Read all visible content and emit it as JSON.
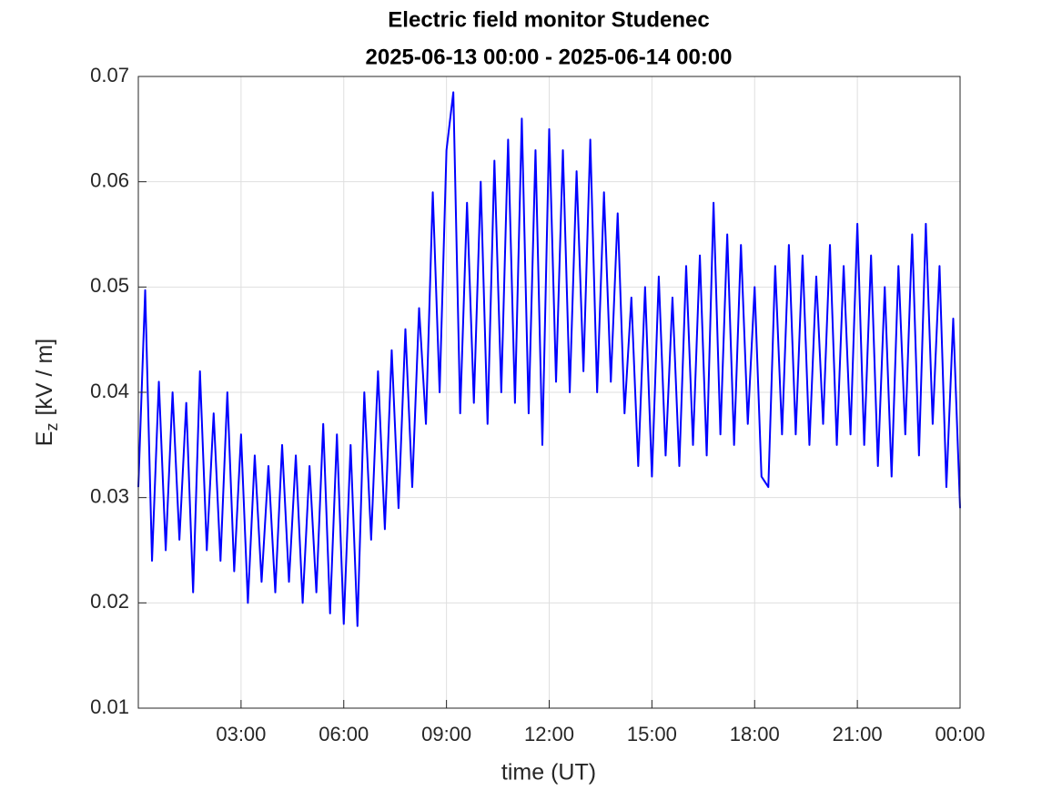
{
  "chart_data": {
    "type": "line",
    "title": [
      "Electric field monitor Studenec",
      "2025-06-13 00:00 - 2025-06-14 00:00"
    ],
    "xlabel": "time (UT)",
    "ylabel": {
      "main": "E",
      "sub": "z",
      "unit": "[kV / m]"
    },
    "x": [
      0,
      0.2,
      0.4,
      0.6,
      0.8,
      1,
      1.2,
      1.4,
      1.6,
      1.8,
      2,
      2.2,
      2.4,
      2.6,
      2.8,
      3,
      3.2,
      3.4,
      3.6,
      3.8,
      4,
      4.2,
      4.4,
      4.6,
      4.8,
      5,
      5.2,
      5.4,
      5.6,
      5.8,
      6,
      6.2,
      6.4,
      6.6,
      6.8,
      7,
      7.2,
      7.4,
      7.6,
      7.8,
      8,
      8.2,
      8.4,
      8.6,
      8.8,
      9,
      9.2,
      9.4,
      9.6,
      9.8,
      10,
      10.2,
      10.4,
      10.6,
      10.8,
      11,
      11.2,
      11.4,
      11.6,
      11.8,
      12,
      12.2,
      12.4,
      12.6,
      12.8,
      13,
      13.2,
      13.4,
      13.6,
      13.8,
      14,
      14.2,
      14.4,
      14.6,
      14.8,
      15,
      15.2,
      15.4,
      15.6,
      15.8,
      16,
      16.2,
      16.4,
      16.6,
      16.8,
      17,
      17.2,
      17.4,
      17.6,
      17.8,
      18,
      18.2,
      18.4,
      18.6,
      18.8,
      19,
      19.2,
      19.4,
      19.6,
      19.8,
      20,
      20.2,
      20.4,
      20.6,
      20.8,
      21,
      21.2,
      21.4,
      21.6,
      21.8,
      22,
      22.2,
      22.4,
      22.6,
      22.8,
      23,
      23.2,
      23.4,
      23.6,
      23.8,
      24
    ],
    "series": [
      {
        "color": "#0000ff",
        "values": [
          0.031,
          0.0497,
          0.024,
          0.041,
          0.025,
          0.04,
          0.026,
          0.039,
          0.021,
          0.042,
          0.025,
          0.038,
          0.024,
          0.04,
          0.023,
          0.036,
          0.02,
          0.034,
          0.022,
          0.033,
          0.021,
          0.035,
          0.022,
          0.034,
          0.02,
          0.033,
          0.021,
          0.037,
          0.019,
          0.036,
          0.018,
          0.035,
          0.0178,
          0.04,
          0.026,
          0.042,
          0.027,
          0.044,
          0.029,
          0.046,
          0.031,
          0.048,
          0.037,
          0.059,
          0.04,
          0.063,
          0.0685,
          0.038,
          0.058,
          0.039,
          0.06,
          0.037,
          0.062,
          0.04,
          0.064,
          0.039,
          0.066,
          0.038,
          0.063,
          0.035,
          0.065,
          0.041,
          0.063,
          0.04,
          0.061,
          0.042,
          0.064,
          0.04,
          0.059,
          0.041,
          0.057,
          0.038,
          0.049,
          0.033,
          0.05,
          0.032,
          0.051,
          0.034,
          0.049,
          0.033,
          0.052,
          0.035,
          0.053,
          0.034,
          0.058,
          0.036,
          0.055,
          0.035,
          0.054,
          0.037,
          0.05,
          0.032,
          0.031,
          0.052,
          0.036,
          0.054,
          0.036,
          0.053,
          0.035,
          0.051,
          0.037,
          0.054,
          0.035,
          0.052,
          0.036,
          0.056,
          0.035,
          0.053,
          0.033,
          0.05,
          0.032,
          0.052,
          0.036,
          0.055,
          0.034,
          0.056,
          0.037,
          0.052,
          0.031,
          0.047,
          0.029
        ]
      }
    ],
    "xlim": [
      0,
      24
    ],
    "xticks": [
      {
        "value": 3,
        "label": "03:00"
      },
      {
        "value": 6,
        "label": "06:00"
      },
      {
        "value": 9,
        "label": "09:00"
      },
      {
        "value": 12,
        "label": "12:00"
      },
      {
        "value": 15,
        "label": "15:00"
      },
      {
        "value": 18,
        "label": "18:00"
      },
      {
        "value": 21,
        "label": "21:00"
      },
      {
        "value": 24,
        "label": "00:00"
      }
    ],
    "ylim": [
      0.01,
      0.07
    ],
    "yticks": [
      0.01,
      0.02,
      0.03,
      0.04,
      0.05,
      0.06,
      0.07
    ],
    "grid": true
  }
}
